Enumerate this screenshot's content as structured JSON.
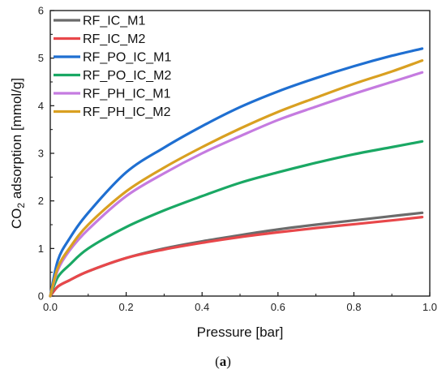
{
  "caption": {
    "open": "(",
    "label": "a",
    "close": ")"
  },
  "chart_data": {
    "type": "line",
    "title": "",
    "xlabel": "Pressure [bar]",
    "ylabel_parts": {
      "pre": "CO",
      "sub": "2",
      "post": " adsorption [mmol/g]"
    },
    "xlim": [
      0,
      1.0
    ],
    "ylim": [
      0,
      6
    ],
    "xticks": [
      0,
      0.2,
      0.4,
      0.6,
      0.8,
      1.0
    ],
    "xtick_labels": [
      "0.0",
      "0.2",
      "0.4",
      "0.6",
      "0.8",
      "1.0"
    ],
    "yticks": [
      0,
      1,
      2,
      3,
      4,
      5,
      6
    ],
    "ytick_labels": [
      "0",
      "1",
      "2",
      "3",
      "4",
      "5",
      "6"
    ],
    "grid": false,
    "legend_position": "top-left",
    "series": [
      {
        "name": "RF_IC_M1",
        "color": "#6b6b6b",
        "x": [
          0,
          0.02,
          0.05,
          0.1,
          0.2,
          0.3,
          0.4,
          0.5,
          0.6,
          0.7,
          0.8,
          0.9,
          0.98
        ],
        "y": [
          0,
          0.2,
          0.33,
          0.52,
          0.8,
          1.0,
          1.15,
          1.28,
          1.4,
          1.5,
          1.59,
          1.68,
          1.75
        ]
      },
      {
        "name": "RF_IC_M2",
        "color": "#e8474a",
        "x": [
          0,
          0.02,
          0.05,
          0.1,
          0.2,
          0.3,
          0.4,
          0.5,
          0.6,
          0.7,
          0.8,
          0.9,
          0.98
        ],
        "y": [
          0,
          0.2,
          0.33,
          0.52,
          0.8,
          0.98,
          1.12,
          1.24,
          1.34,
          1.43,
          1.51,
          1.59,
          1.66
        ]
      },
      {
        "name": "RF_PO_IC_M1",
        "color": "#1f6fd1",
        "x": [
          0,
          0.02,
          0.05,
          0.1,
          0.2,
          0.3,
          0.4,
          0.5,
          0.6,
          0.7,
          0.8,
          0.9,
          0.98
        ],
        "y": [
          0,
          0.75,
          1.2,
          1.75,
          2.6,
          3.12,
          3.57,
          3.97,
          4.3,
          4.58,
          4.83,
          5.05,
          5.2
        ]
      },
      {
        "name": "RF_PO_IC_M2",
        "color": "#1aa864",
        "x": [
          0,
          0.02,
          0.05,
          0.1,
          0.2,
          0.3,
          0.4,
          0.5,
          0.6,
          0.7,
          0.8,
          0.9,
          0.98
        ],
        "y": [
          0,
          0.4,
          0.65,
          1.0,
          1.45,
          1.8,
          2.1,
          2.38,
          2.6,
          2.8,
          2.98,
          3.13,
          3.25
        ]
      },
      {
        "name": "RF_PH_IC_M1",
        "color": "#c57be0",
        "x": [
          0,
          0.02,
          0.05,
          0.1,
          0.2,
          0.3,
          0.4,
          0.5,
          0.6,
          0.7,
          0.8,
          0.9,
          0.98
        ],
        "y": [
          0,
          0.55,
          0.95,
          1.4,
          2.1,
          2.58,
          3.0,
          3.36,
          3.7,
          3.98,
          4.25,
          4.5,
          4.7
        ]
      },
      {
        "name": "RF_PH_IC_M2",
        "color": "#d9a021",
        "x": [
          0,
          0.02,
          0.05,
          0.1,
          0.2,
          0.3,
          0.4,
          0.5,
          0.6,
          0.7,
          0.8,
          0.9,
          0.98
        ],
        "y": [
          0,
          0.6,
          1.0,
          1.5,
          2.2,
          2.7,
          3.13,
          3.52,
          3.87,
          4.17,
          4.46,
          4.72,
          4.95
        ]
      }
    ]
  }
}
